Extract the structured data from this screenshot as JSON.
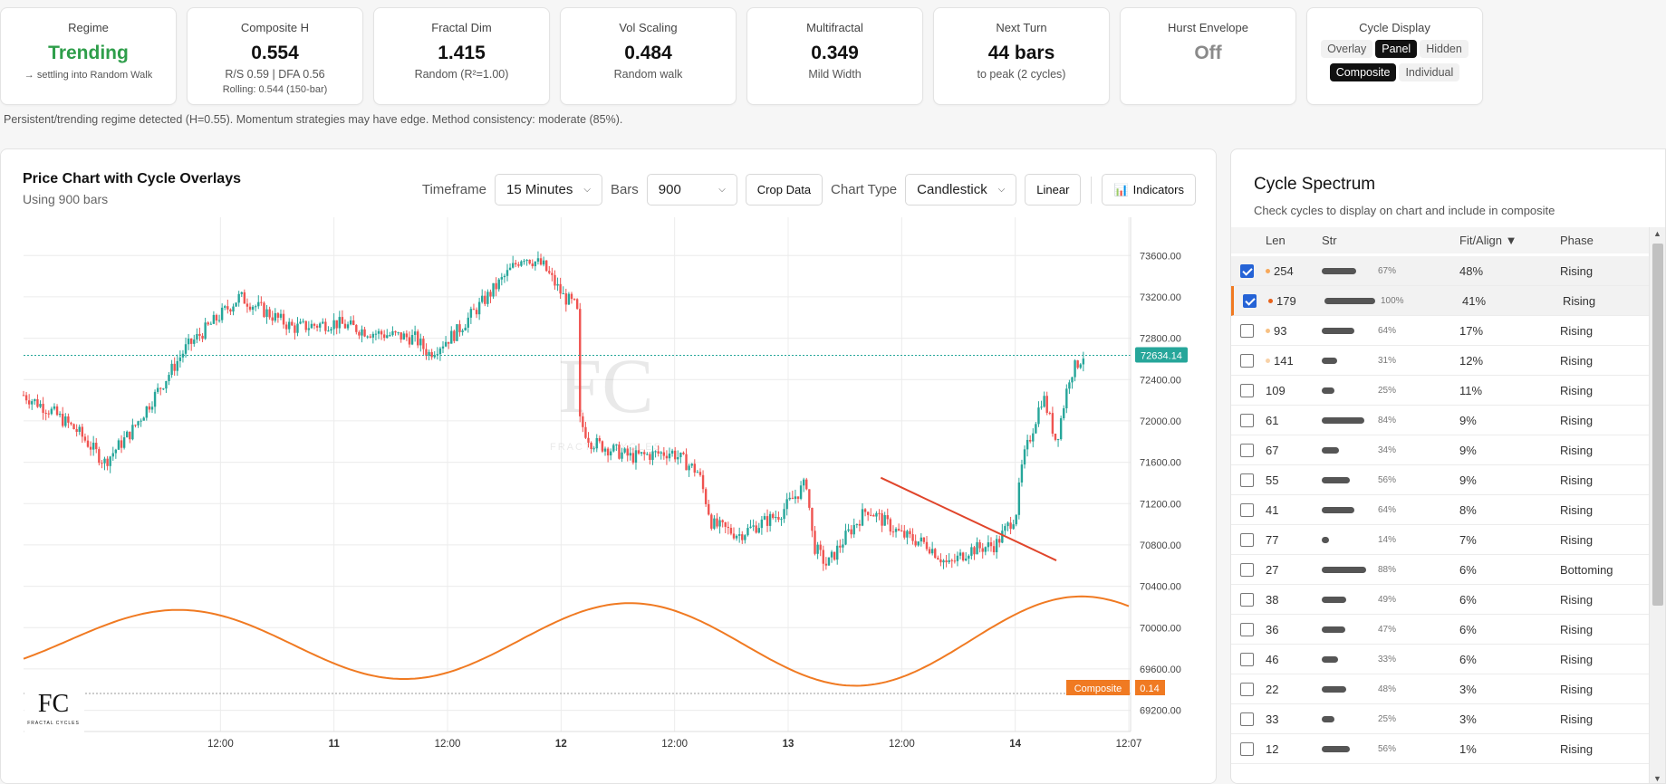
{
  "stats": [
    {
      "label": "Regime",
      "value": "Trending",
      "sub": "→ settling into Random Walk",
      "sub2": ""
    },
    {
      "label": "Composite H",
      "value": "0.554",
      "sub": "R/S 0.59 | DFA 0.56",
      "sub2": "Rolling: 0.544 (150-bar)"
    },
    {
      "label": "Fractal Dim",
      "value": "1.415",
      "sub": "Random (R²=1.00)",
      "sub2": ""
    },
    {
      "label": "Vol Scaling",
      "value": "0.484",
      "sub": "Random walk",
      "sub2": ""
    },
    {
      "label": "Multifractal",
      "value": "0.349",
      "sub": "Mild Width",
      "sub2": ""
    },
    {
      "label": "Next Turn",
      "value": "44 bars",
      "sub": "to peak (2 cycles)",
      "sub2": ""
    },
    {
      "label": "Hurst Envelope",
      "value": "Off",
      "sub": "",
      "sub2": ""
    }
  ],
  "cycle_display": {
    "label": "Cycle Display",
    "modes": [
      "Overlay",
      "Panel",
      "Hidden"
    ],
    "active_mode": "Panel",
    "views": [
      "Composite",
      "Individual"
    ],
    "active_view": "Composite"
  },
  "status_text": "Persistent/trending regime detected (H=0.55). Momentum strategies may have edge. Method consistency: moderate (85%).",
  "chart": {
    "title": "Price Chart with Cycle Overlays",
    "subtitle": "Using 900 bars",
    "timeframe_label": "Timeframe",
    "timeframe_value": "15 Minutes",
    "bars_label": "Bars",
    "bars_value": "900",
    "crop_label": "Crop Data",
    "chart_type_label": "Chart Type",
    "chart_type_value": "Candlestick",
    "scale_label": "Linear",
    "indicators_label": "Indicators",
    "last_price": "72634.14",
    "composite_label": "Composite",
    "composite_value": "0.14",
    "watermark": "FRACTAL CYCLES"
  },
  "chart_data": {
    "type": "candlestick",
    "x_ticks": [
      "12:00",
      "11",
      "12:00",
      "12",
      "12:00",
      "13",
      "12:00",
      "14",
      "12:07"
    ],
    "y_ticks": [
      73600,
      73200,
      72800,
      72400,
      72000,
      71600,
      71200,
      70800,
      70400,
      70000,
      69600,
      69200
    ],
    "ylim": [
      69100,
      73900
    ],
    "last_price": 72634.14,
    "price_path": [
      [
        0,
        72250
      ],
      [
        0.2,
        72100
      ],
      [
        0.4,
        71900
      ],
      [
        0.6,
        71600
      ],
      [
        0.8,
        71900
      ],
      [
        1.0,
        72300
      ],
      [
        1.2,
        72700
      ],
      [
        1.4,
        72950
      ],
      [
        1.6,
        73200
      ],
      [
        1.8,
        73050
      ],
      [
        2.0,
        72900
      ],
      [
        2.3,
        72950
      ],
      [
        2.6,
        72850
      ],
      [
        2.9,
        72800
      ],
      [
        3.0,
        72650
      ],
      [
        3.2,
        72850
      ],
      [
        3.5,
        73300
      ],
      [
        3.7,
        73600
      ],
      [
        3.85,
        73500
      ],
      [
        4.0,
        73200
      ],
      [
        4.1,
        73100
      ],
      [
        4.12,
        72000
      ],
      [
        4.2,
        71800
      ],
      [
        4.5,
        71650
      ],
      [
        4.8,
        71700
      ],
      [
        5.0,
        71500
      ],
      [
        5.1,
        71000
      ],
      [
        5.3,
        70900
      ],
      [
        5.6,
        71100
      ],
      [
        5.8,
        71400
      ],
      [
        5.85,
        70800
      ],
      [
        5.95,
        70600
      ],
      [
        6.1,
        70900
      ],
      [
        6.25,
        71150
      ],
      [
        6.5,
        70900
      ],
      [
        6.7,
        70800
      ],
      [
        6.85,
        70600
      ],
      [
        7.0,
        70750
      ],
      [
        7.2,
        70800
      ],
      [
        7.35,
        71100
      ],
      [
        7.4,
        71600
      ],
      [
        7.55,
        72250
      ],
      [
        7.65,
        71800
      ],
      [
        7.75,
        72450
      ],
      [
        7.85,
        72634.14
      ]
    ],
    "trendline": [
      [
        6.35,
        71450
      ],
      [
        7.65,
        70650
      ]
    ],
    "composite_wave": {
      "min_pct": 0.72,
      "max_pct": 0.94,
      "note": "oscillating composite cycle in lower pane"
    }
  },
  "spectrum": {
    "title": "Cycle Spectrum",
    "subtitle": "Check cycles to display on chart and include in composite",
    "columns": [
      "Len",
      "Str",
      "Fit/Align ▼",
      "Phase"
    ],
    "rows": [
      {
        "len": "254",
        "str": 67,
        "str_label": "67%",
        "fit": "48%",
        "phase": "Rising",
        "checked": true,
        "dot": "#f7a85a"
      },
      {
        "len": "179",
        "str": 100,
        "str_label": "100%",
        "fit": "41%",
        "phase": "Rising",
        "checked": true,
        "dot": "#e8621a"
      },
      {
        "len": "93",
        "str": 64,
        "str_label": "64%",
        "fit": "17%",
        "phase": "Rising",
        "checked": false,
        "dot": "#f7c184"
      },
      {
        "len": "141",
        "str": 31,
        "str_label": "31%",
        "fit": "12%",
        "phase": "Rising",
        "checked": false,
        "dot": "#f8d2a8"
      },
      {
        "len": "109",
        "str": 25,
        "str_label": "25%",
        "fit": "11%",
        "phase": "Rising",
        "checked": false,
        "dot": ""
      },
      {
        "len": "61",
        "str": 84,
        "str_label": "84%",
        "fit": "9%",
        "phase": "Rising",
        "checked": false,
        "dot": ""
      },
      {
        "len": "67",
        "str": 34,
        "str_label": "34%",
        "fit": "9%",
        "phase": "Rising",
        "checked": false,
        "dot": ""
      },
      {
        "len": "55",
        "str": 56,
        "str_label": "56%",
        "fit": "9%",
        "phase": "Rising",
        "checked": false,
        "dot": ""
      },
      {
        "len": "41",
        "str": 64,
        "str_label": "64%",
        "fit": "8%",
        "phase": "Rising",
        "checked": false,
        "dot": ""
      },
      {
        "len": "77",
        "str": 14,
        "str_label": "14%",
        "fit": "7%",
        "phase": "Rising",
        "checked": false,
        "dot": ""
      },
      {
        "len": "27",
        "str": 88,
        "str_label": "88%",
        "fit": "6%",
        "phase": "Bottoming",
        "checked": false,
        "dot": ""
      },
      {
        "len": "38",
        "str": 49,
        "str_label": "49%",
        "fit": "6%",
        "phase": "Rising",
        "checked": false,
        "dot": ""
      },
      {
        "len": "36",
        "str": 47,
        "str_label": "47%",
        "fit": "6%",
        "phase": "Rising",
        "checked": false,
        "dot": ""
      },
      {
        "len": "46",
        "str": 33,
        "str_label": "33%",
        "fit": "6%",
        "phase": "Rising",
        "checked": false,
        "dot": ""
      },
      {
        "len": "22",
        "str": 48,
        "str_label": "48%",
        "fit": "3%",
        "phase": "Rising",
        "checked": false,
        "dot": ""
      },
      {
        "len": "33",
        "str": 25,
        "str_label": "25%",
        "fit": "3%",
        "phase": "Rising",
        "checked": false,
        "dot": ""
      },
      {
        "len": "12",
        "str": 56,
        "str_label": "56%",
        "fit": "1%",
        "phase": "Rising",
        "checked": false,
        "dot": ""
      }
    ]
  },
  "colors": {
    "up": "#26a69a",
    "down": "#ef5350",
    "composite": "#f07a22",
    "trend": "#e0452b",
    "price_line": "#26a69a"
  }
}
